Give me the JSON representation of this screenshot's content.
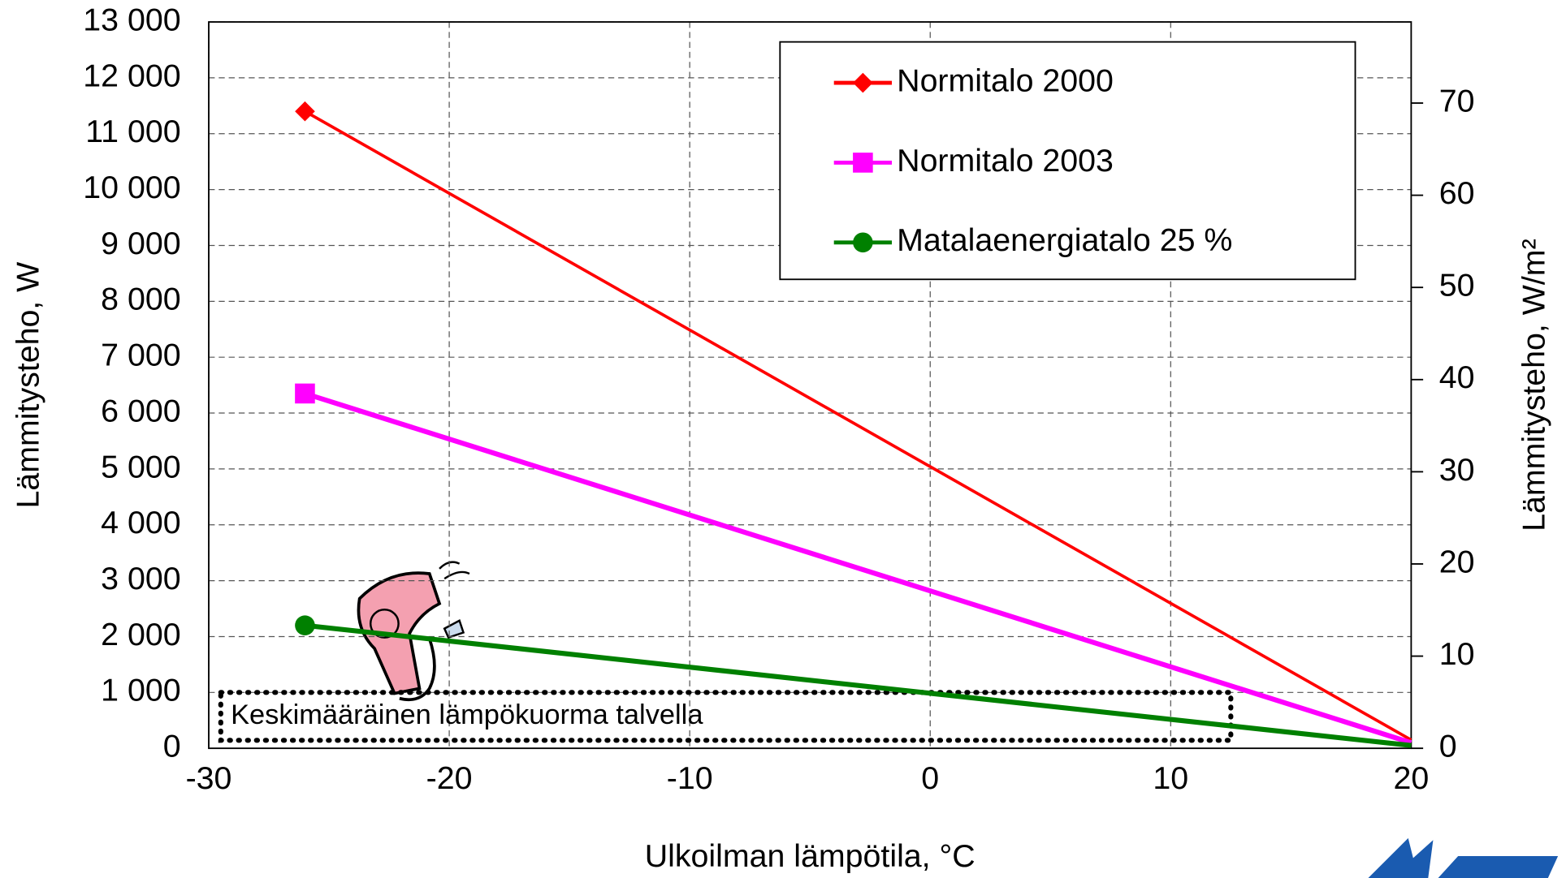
{
  "chart_data": {
    "type": "line",
    "x_label": "Ulkoilman lämpötila, °C",
    "y_label": "Lämmitysteho, W",
    "y2_label": "Lämmitysteho, W/m²",
    "xlim": [
      -30,
      20
    ],
    "xticks": [
      -30,
      -20,
      -10,
      0,
      10,
      20
    ],
    "ylim": [
      0,
      13000
    ],
    "yticks": [
      0,
      {
        "value": 1000,
        "label": "1 000"
      },
      {
        "value": 2000,
        "label": "2 000"
      },
      {
        "value": 3000,
        "label": "3 000"
      },
      {
        "value": 4000,
        "label": "4 000"
      },
      {
        "value": 5000,
        "label": "5 000"
      },
      {
        "value": 6000,
        "label": "6 000"
      },
      {
        "value": 7000,
        "label": "7 000"
      },
      {
        "value": 8000,
        "label": "8 000"
      },
      {
        "value": 9000,
        "label": "9 000"
      },
      {
        "value": 10000,
        "label": "10 000"
      },
      {
        "value": 11000,
        "label": "11 000"
      },
      {
        "value": 12000,
        "label": "12 000"
      },
      {
        "value": 13000,
        "label": "13 000"
      }
    ],
    "y2lim": [
      0,
      78.8
    ],
    "y2ticks": [
      0,
      10,
      20,
      30,
      40,
      50,
      60,
      70
    ],
    "grid": true,
    "series": [
      {
        "name": "Normitalo 2000",
        "color": "#ff0000",
        "marker": "diamond",
        "x": [
          -26,
          20
        ],
        "values": [
          11400,
          150
        ]
      },
      {
        "name": "Normitalo 2003",
        "color": "#ff00ff",
        "marker": "square",
        "x": [
          -26,
          20
        ],
        "values": [
          6350,
          100
        ]
      },
      {
        "name": "Matalaenergiatalo 25 %",
        "color": "#008000",
        "marker": "circle",
        "x": [
          -26,
          20
        ],
        "values": [
          2200,
          50
        ]
      }
    ],
    "band": {
      "label": "Keskimääräinen lämpökuorma talvella",
      "xlim": [
        -29.5,
        12.5
      ],
      "ylim": [
        0,
        1000
      ]
    }
  }
}
